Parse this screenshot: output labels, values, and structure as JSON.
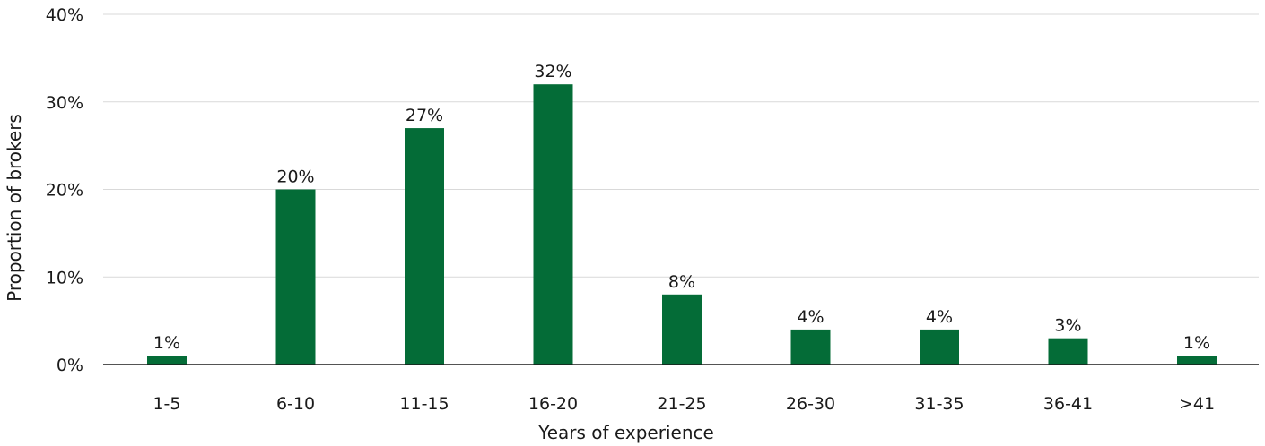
{
  "chart_data": {
    "type": "bar",
    "categories": [
      "1-5",
      "6-10",
      "11-15",
      "16-20",
      "21-25",
      "26-30",
      "31-35",
      "36-41",
      ">41"
    ],
    "values": [
      1,
      20,
      27,
      32,
      8,
      4,
      4,
      3,
      1
    ],
    "value_labels": [
      "1%",
      "20%",
      "27%",
      "32%",
      "8%",
      "4%",
      "4%",
      "3%",
      "1%"
    ],
    "title": "",
    "xlabel": "Years of experience",
    "ylabel": "Proportion of brokers",
    "ylim": [
      0,
      40
    ],
    "yticks": [
      0,
      10,
      20,
      30,
      40
    ],
    "ytick_labels": [
      "0%",
      "10%",
      "20%",
      "30%",
      "40%"
    ],
    "grid": true,
    "legend": "none",
    "colors": {
      "bar": "#046c37",
      "grid": "#d9d9d9",
      "axis": "#1a1a1a"
    }
  }
}
